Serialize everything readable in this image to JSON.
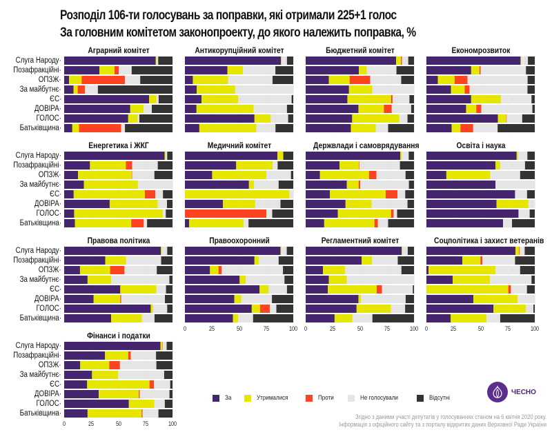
{
  "chart_data": {
    "type": "bar",
    "orientation": "horizontal-stacked",
    "title": "Розподіл 106-ти голосувань за поправки, які отримали 225+1 голос",
    "subtitle": "За головним комітетом законопроекту, до якого належить поправка, %",
    "categories": [
      "Слуга Народу",
      "Позафракційні",
      "ОПЗЖ",
      "За майбутнє",
      "ЄС",
      "ДОВІРА",
      "ГОЛОС",
      "Батьківщина"
    ],
    "series_names": [
      "За",
      "Утрималися",
      "Проти",
      "Не голосували",
      "Відсутні"
    ],
    "colors": [
      "#45256e",
      "#e6e600",
      "#fc4520",
      "#e5e5e5",
      "#333333"
    ],
    "xlim": [
      0,
      100
    ],
    "xticks": [
      "0",
      "25",
      "50",
      "75",
      "100"
    ],
    "legend_position": "bottom-center",
    "panels": [
      {
        "title": "Аграрний комітет",
        "values": [
          [
            84.4,
            0.9,
            0,
            1.5,
            13.2
          ],
          [
            32.5,
            13.9,
            4.1,
            11.8,
            37.7
          ],
          [
            4.5,
            11.6,
            40,
            14.1,
            29.8
          ],
          [
            8.6,
            3.9,
            6.6,
            12,
            68.9
          ],
          [
            78.4,
            6.9,
            0,
            1.9,
            12.8
          ],
          [
            61,
            12.4,
            0,
            7.5,
            19.1
          ],
          [
            59.1,
            8.8,
            0,
            1.5,
            30.6
          ],
          [
            7.5,
            6.2,
            39,
            3.4,
            43.9
          ]
        ]
      },
      {
        "title": "Антикорупційний комітет",
        "values": [
          [
            88.7,
            0.4,
            0,
            5.1,
            5.8
          ],
          [
            39.2,
            14.3,
            0,
            30,
            16.5
          ],
          [
            7.3,
            32.5,
            0,
            41.1,
            19.1
          ],
          [
            10.9,
            35.5,
            0,
            53.6,
            0
          ],
          [
            15.4,
            33.8,
            0,
            49.3,
            1.5
          ],
          [
            10.7,
            52.7,
            0,
            30.8,
            5.8
          ],
          [
            64.2,
            15,
            0,
            16.1,
            4.7
          ],
          [
            13.3,
            52.7,
            0,
            17.6,
            16.4
          ]
        ]
      },
      {
        "title": "Бюджетний комітет",
        "values": [
          [
            83.5,
            4.5,
            0.9,
            5.8,
            5.3
          ],
          [
            49.1,
            7.3,
            0,
            27.4,
            16.2
          ],
          [
            21.4,
            19.2,
            19,
            28.6,
            11.8
          ],
          [
            40,
            21.6,
            0,
            38.4,
            0
          ],
          [
            38.5,
            40.4,
            1.3,
            15.6,
            4.2
          ],
          [
            48.7,
            23.5,
            7.3,
            17.9,
            2.6
          ],
          [
            42.9,
            43.6,
            0,
            7.5,
            6
          ],
          [
            41.7,
            23.1,
            0,
            11.3,
            23.9
          ]
        ]
      },
      {
        "title": "Економрозвиток",
        "values": [
          [
            86.9,
            0.4,
            0,
            6.4,
            6.3
          ],
          [
            41.3,
            7.7,
            1.1,
            41.8,
            8.1
          ],
          [
            10.5,
            15.6,
            11.8,
            55.5,
            6.6
          ],
          [
            22.7,
            12.6,
            4.5,
            53.5,
            6.7
          ],
          [
            41.3,
            27.6,
            0,
            28.1,
            3
          ],
          [
            36.6,
            9.4,
            4.7,
            47.1,
            2.2
          ],
          [
            66,
            7.7,
            0.4,
            14.3,
            11.6
          ],
          [
            23.3,
            8.1,
            11.8,
            22.5,
            34.3
          ]
        ]
      },
      {
        "title": "Енергетика і ЖКГ",
        "values": [
          [
            92.7,
            1.1,
            0,
            1.3,
            4.9
          ],
          [
            23.8,
            33.2,
            5.8,
            23.6,
            13.6
          ],
          [
            12.8,
            49.5,
            0.4,
            20.6,
            16.7
          ],
          [
            18.2,
            49.9,
            0,
            31.9,
            0
          ],
          [
            8.8,
            65.7,
            9.6,
            7.1,
            8.8
          ],
          [
            42,
            44.3,
            0,
            8.6,
            5.1
          ],
          [
            9.2,
            81.8,
            0,
            2.8,
            6.2
          ],
          [
            9.9,
            52,
            11.6,
            3,
            23.5
          ]
        ]
      },
      {
        "title": "Медичний комітет",
        "values": [
          [
            85.4,
            5.4,
            0,
            0,
            9.2
          ],
          [
            47.3,
            33.6,
            0,
            4.7,
            14.4
          ],
          [
            25.1,
            50.1,
            0,
            22.7,
            2.1
          ],
          [
            59.1,
            4.7,
            0,
            22.7,
            13.5
          ],
          [
            0,
            96.6,
            0,
            3.4,
            0
          ],
          [
            35.1,
            29.8,
            0,
            23.3,
            11.8
          ],
          [
            0,
            0,
            75.2,
            5.4,
            19.4
          ],
          [
            3.9,
            50.3,
            0,
            4.5,
            41.3
          ]
        ]
      },
      {
        "title": "Держвлади і самоврядування",
        "values": [
          [
            87.4,
            1.3,
            0,
            6.4,
            4.9
          ],
          [
            31.2,
            18.2,
            0.4,
            37.2,
            13
          ],
          [
            13.2,
            45.3,
            6.8,
            26.9,
            7.8
          ],
          [
            38,
            10.9,
            1.5,
            44.9,
            4.7
          ],
          [
            22.4,
            51.5,
            10.9,
            7.1,
            8.1
          ],
          [
            36.8,
            24.1,
            0,
            33.1,
            6
          ],
          [
            29.7,
            49.1,
            2.4,
            3.2,
            15.6
          ],
          [
            17.1,
            46.4,
            3.2,
            9.4,
            23.9
          ]
        ]
      },
      {
        "title": "Освіта і наука",
        "values": [
          [
            83.3,
            1.3,
            0,
            8.6,
            6.8
          ],
          [
            63.8,
            4.3,
            0,
            22.9,
            9
          ],
          [
            18.4,
            40.5,
            0,
            27.6,
            13.5
          ],
          [
            63.8,
            0,
            0,
            36.2,
            0
          ],
          [
            81.8,
            0,
            0,
            11.1,
            7.1
          ],
          [
            64.7,
            29.5,
            0,
            5.8,
            0
          ],
          [
            85,
            0,
            0,
            10.3,
            4.7
          ],
          [
            70.7,
            0,
            0,
            8.3,
            21
          ]
        ]
      },
      {
        "title": "Правова політика",
        "values": [
          [
            89.3,
            0.9,
            0,
            4.9,
            4.9
          ],
          [
            37.9,
            19.3,
            0,
            32.3,
            10.5
          ],
          [
            14.6,
            27.8,
            13.3,
            29.8,
            14.5
          ],
          [
            21.6,
            21.8,
            0,
            53.7,
            2.9
          ],
          [
            51.8,
            33.4,
            0,
            8.8,
            6
          ],
          [
            27.2,
            24.6,
            0.9,
            40.3,
            7
          ],
          [
            79.9,
            2.1,
            0,
            13.1,
            4.9
          ],
          [
            43.3,
            28.5,
            0,
            11.6,
            16.6
          ]
        ]
      },
      {
        "title": "Правоохоронний",
        "values": [
          [
            88.2,
            0.6,
            0,
            5.2,
            6
          ],
          [
            64.2,
            4.1,
            0,
            18.2,
            13.5
          ],
          [
            23.1,
            7.9,
            3,
            56.5,
            9.5
          ],
          [
            50.5,
            5.6,
            0,
            35.8,
            8.1
          ],
          [
            68.9,
            8.4,
            0,
            16.9,
            5.8
          ],
          [
            45.6,
            6.4,
            0,
            28.3,
            19.7
          ],
          [
            61.7,
            7.7,
            9,
            6,
            15.6
          ],
          [
            44.3,
            4.9,
            0,
            13.7,
            37.1
          ]
        ]
      },
      {
        "title": "Регламентний комітет",
        "values": [
          [
            88.7,
            0.4,
            0,
            5.1,
            5.8
          ],
          [
            51.7,
            9.6,
            0,
            23.7,
            15
          ],
          [
            16,
            20.5,
            0,
            51.9,
            11.6
          ],
          [
            21.4,
            16.5,
            0,
            62.1,
            0
          ],
          [
            20.5,
            45.1,
            4.9,
            28.4,
            1.1
          ],
          [
            48.7,
            2.4,
            0,
            41.2,
            7.7
          ],
          [
            47,
            31.8,
            0,
            13,
            8.2
          ],
          [
            26.7,
            16.5,
            0,
            18.4,
            38.4
          ]
        ]
      },
      {
        "title": "Соцполітика і захист ветеранів",
        "values": [
          [
            82.2,
            3.4,
            0.6,
            4.5,
            9.3
          ],
          [
            33.2,
            16.7,
            1.7,
            30.2,
            18.2
          ],
          [
            1.9,
            61.9,
            0,
            22.7,
            13.5
          ],
          [
            24.2,
            34.5,
            0,
            38.3,
            3
          ],
          [
            0,
            75.6,
            2.4,
            14.8,
            7.2
          ],
          [
            43.3,
            40.9,
            0,
            15.8,
            0
          ],
          [
            61.9,
            30,
            0,
            6.9,
            1.2
          ],
          [
            22.3,
            33.2,
            0,
            12.6,
            31.9
          ]
        ]
      },
      {
        "title": "Фінанси і податки",
        "values": [
          [
            88.9,
            1.7,
            0.4,
            3.6,
            5.4
          ],
          [
            37.7,
            21.4,
            2.4,
            23.3,
            15.2
          ],
          [
            14.8,
            26.8,
            9.9,
            33.6,
            14.9
          ],
          [
            25.7,
            24.2,
            0,
            42.4,
            7.7
          ],
          [
            21.2,
            57.6,
            4.1,
            15,
            2.1
          ],
          [
            31.9,
            37,
            0.9,
            27.4,
            2.8
          ],
          [
            59.7,
            23.6,
            0,
            9.6,
            7.1
          ],
          [
            21.6,
            49.9,
            0.9,
            14.6,
            13
          ]
        ]
      }
    ]
  },
  "source": {
    "line1": "Згідно з даними участі депутатів у голосуваннях станом на 6 квітня 2020 року.",
    "line2": "Інформація з офіційного сайту та з порталу відкритих даних Верховної Ради України"
  },
  "logo": {
    "name": "ЧЕСНО"
  }
}
